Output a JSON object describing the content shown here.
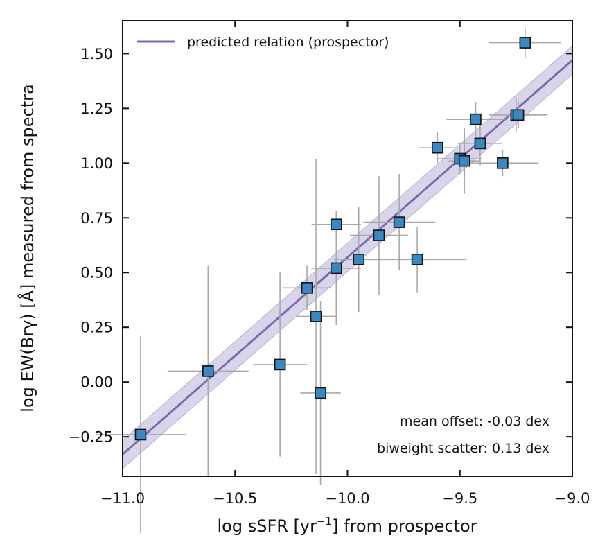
{
  "chart_data": {
    "type": "scatter",
    "title": "",
    "xlabel": "log sSFR [yr⁻¹] from prospector",
    "xlabel_parts": {
      "prefix": "log sSFR [yr",
      "superscript": "−1",
      "suffix": "] from prospector"
    },
    "ylabel": "log EW(Brγ) [Å] measured from spectra",
    "xlim": [
      -11.0,
      -9.0
    ],
    "ylim": [
      -0.43,
      1.65
    ],
    "xticks": [
      -11.0,
      -10.5,
      -10.0,
      -9.5,
      -9.0
    ],
    "xtick_labels": [
      "−11.0",
      "−10.5",
      "−10.0",
      "−9.5",
      "−9.0"
    ],
    "yticks": [
      -0.25,
      0.0,
      0.25,
      0.5,
      0.75,
      1.0,
      1.25,
      1.5
    ],
    "ytick_labels": [
      "−0.25",
      "0.00",
      "0.25",
      "0.50",
      "0.75",
      "1.00",
      "1.25",
      "1.50"
    ],
    "grid": false,
    "legend": {
      "position": "top-left",
      "entries": [
        "predicted relation (prospector)"
      ]
    },
    "relation": {
      "name": "predicted relation (prospector)",
      "x": [
        -11.0,
        -9.0
      ],
      "y": [
        -0.33,
        1.47
      ],
      "band_halfwidth": 0.065,
      "color": "#7b68ae",
      "band_color": "#b8b0d8"
    },
    "points": [
      {
        "x": -10.92,
        "y": -0.24,
        "xerr": 0.2,
        "yerr": 0.45
      },
      {
        "x": -10.62,
        "y": 0.05,
        "xerr": 0.18,
        "yerr": 0.48
      },
      {
        "x": -10.3,
        "y": 0.08,
        "xerr": 0.12,
        "yerr": 0.42
      },
      {
        "x": -10.18,
        "y": 0.43,
        "xerr": 0.11,
        "yerr": 0.1
      },
      {
        "x": -10.14,
        "y": 0.3,
        "xerr": 0.09,
        "yerr": 0.72
      },
      {
        "x": -10.12,
        "y": -0.05,
        "xerr": 0.09,
        "yerr": 0.42
      },
      {
        "x": -10.05,
        "y": 0.72,
        "xerr": 0.11,
        "yerr": 0.06
      },
      {
        "x": -10.05,
        "y": 0.52,
        "xerr": 0.11,
        "yerr": 0.26
      },
      {
        "x": -9.95,
        "y": 0.56,
        "xerr": 0.11,
        "yerr": 0.24
      },
      {
        "x": -9.86,
        "y": 0.67,
        "xerr": 0.13,
        "yerr": 0.27
      },
      {
        "x": -9.77,
        "y": 0.73,
        "xerr": 0.16,
        "yerr": 0.22
      },
      {
        "x": -9.69,
        "y": 0.56,
        "xerr": 0.22,
        "yerr": 0.15
      },
      {
        "x": -9.6,
        "y": 1.07,
        "xerr": 0.08,
        "yerr": 0.07
      },
      {
        "x": -9.5,
        "y": 1.02,
        "xerr": 0.1,
        "yerr": 0.07
      },
      {
        "x": -9.48,
        "y": 1.01,
        "xerr": 0.07,
        "yerr": 0.15
      },
      {
        "x": -9.43,
        "y": 1.2,
        "xerr": 0.13,
        "yerr": 0.08
      },
      {
        "x": -9.41,
        "y": 1.09,
        "xerr": 0.1,
        "yerr": 0.1
      },
      {
        "x": -9.31,
        "y": 1.0,
        "xerr": 0.16,
        "yerr": 0.06
      },
      {
        "x": -9.25,
        "y": 1.22,
        "xerr": 0.1,
        "yerr": 0.08
      },
      {
        "x": -9.24,
        "y": 1.22,
        "xerr": 0.13,
        "yerr": 0.06
      },
      {
        "x": -9.21,
        "y": 1.55,
        "xerr": 0.16,
        "yerr": 0.07
      }
    ],
    "marker": {
      "shape": "square",
      "fill": "#3b87c0",
      "edge": "#111111",
      "errorbar_color": "#a8a8a8"
    },
    "annotations": [
      "mean offset: -0.03 dex",
      "biweight scatter: 0.13 dex"
    ]
  }
}
